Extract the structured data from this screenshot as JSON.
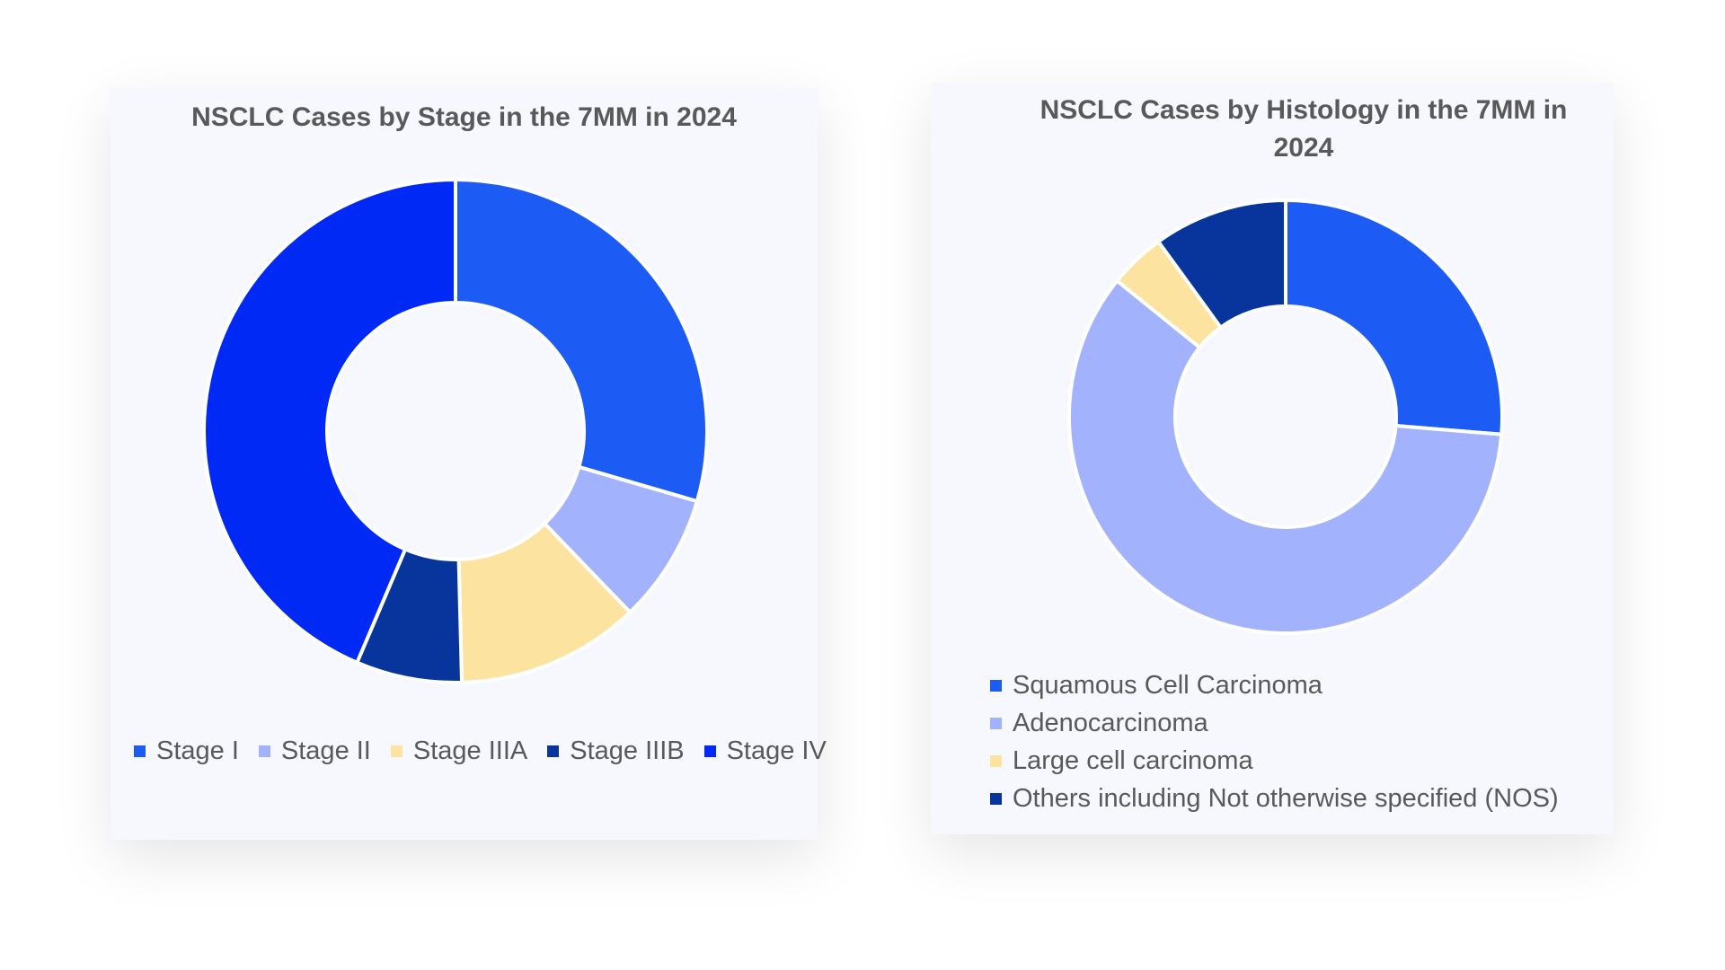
{
  "chart_data": [
    {
      "type": "pie",
      "donut": true,
      "title": "NSCLC Cases by Stage in the 7MM in 2024",
      "categories": [
        "Stage I",
        "Stage II",
        "Stage IIIA",
        "Stage IIIB",
        "Stage IV"
      ],
      "values": [
        29.5,
        8.3,
        11.8,
        6.8,
        43.6
      ],
      "unit": "percent share (estimated)",
      "colors": [
        "#1c5cf5",
        "#a2b2fd",
        "#fde3a0",
        "#07359b",
        "#0029f5"
      ],
      "legend_position": "bottom"
    },
    {
      "type": "pie",
      "donut": true,
      "title": "NSCLC Cases by Histology in the 7MM in 2024",
      "categories": [
        "Squamous Cell Carcinoma",
        "Adenocarcinoma",
        "Large cell carcinoma",
        "Others including Not otherwise specified (NOS)"
      ],
      "values": [
        26.3,
        59.5,
        4.2,
        10.0
      ],
      "unit": "percent share (estimated)",
      "colors": [
        "#1c5cf5",
        "#a2b2fd",
        "#fde3a0",
        "#07359b"
      ],
      "legend_position": "bottom"
    }
  ]
}
